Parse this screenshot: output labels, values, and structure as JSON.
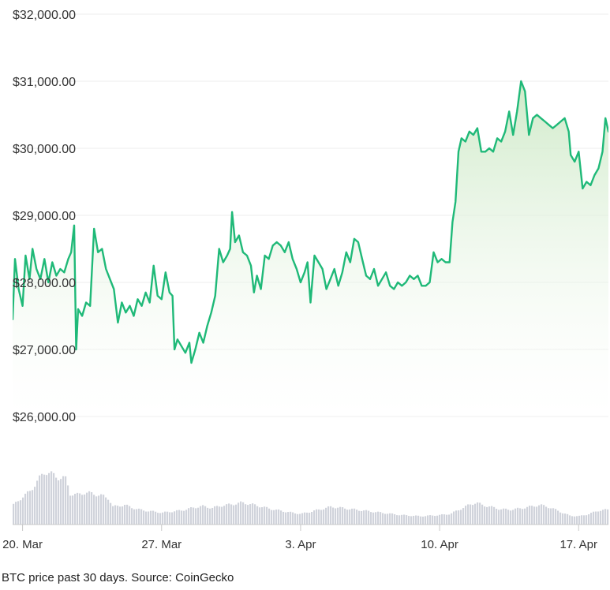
{
  "caption": "BTC price past 30 days. Source: CoinGecko",
  "colors": {
    "line": "#1fb978",
    "fill_top": "#cde9c6",
    "fill_bottom": "#ffffff",
    "grid": "#ececec",
    "volume": "#d0d3db"
  },
  "chart_data": {
    "type": "line",
    "y_tick_labels": [
      "$26,000.00",
      "$27,000.00",
      "$28,000.00",
      "$29,000.00",
      "$30,000.00",
      "$31,000.00",
      "$32,000.00"
    ],
    "y_tick_values": [
      26000,
      27000,
      28000,
      29000,
      30000,
      31000,
      32000
    ],
    "ylim": [
      26000,
      32000
    ],
    "x_tick_labels": [
      "20. Mar",
      "27. Mar",
      "3. Apr",
      "10. Apr",
      "17. Apr"
    ],
    "x_tick_values": [
      0.5,
      7.5,
      14.5,
      21.5,
      28.5
    ],
    "xlim": [
      0,
      30
    ],
    "grid": true,
    "series": [
      {
        "values": [
          [
            0.0,
            27450
          ],
          [
            0.12,
            28350
          ],
          [
            0.3,
            27900
          ],
          [
            0.5,
            27650
          ],
          [
            0.65,
            28400
          ],
          [
            0.85,
            28050
          ],
          [
            1.0,
            28500
          ],
          [
            1.2,
            28200
          ],
          [
            1.4,
            28050
          ],
          [
            1.6,
            28350
          ],
          [
            1.8,
            28000
          ],
          [
            2.0,
            28300
          ],
          [
            2.2,
            28100
          ],
          [
            2.4,
            28200
          ],
          [
            2.6,
            28150
          ],
          [
            2.8,
            28350
          ],
          [
            2.95,
            28450
          ],
          [
            3.1,
            28850
          ],
          [
            3.2,
            27000
          ],
          [
            3.3,
            27600
          ],
          [
            3.5,
            27500
          ],
          [
            3.7,
            27700
          ],
          [
            3.9,
            27650
          ],
          [
            4.1,
            28800
          ],
          [
            4.3,
            28450
          ],
          [
            4.5,
            28500
          ],
          [
            4.7,
            28200
          ],
          [
            4.9,
            28050
          ],
          [
            5.1,
            27900
          ],
          [
            5.3,
            27400
          ],
          [
            5.5,
            27700
          ],
          [
            5.7,
            27550
          ],
          [
            5.9,
            27650
          ],
          [
            6.1,
            27500
          ],
          [
            6.3,
            27750
          ],
          [
            6.5,
            27650
          ],
          [
            6.7,
            27850
          ],
          [
            6.9,
            27700
          ],
          [
            7.1,
            28250
          ],
          [
            7.3,
            27800
          ],
          [
            7.5,
            27750
          ],
          [
            7.7,
            28150
          ],
          [
            7.9,
            27850
          ],
          [
            8.05,
            27800
          ],
          [
            8.15,
            27000
          ],
          [
            8.3,
            27150
          ],
          [
            8.5,
            27050
          ],
          [
            8.7,
            26950
          ],
          [
            8.9,
            27100
          ],
          [
            9.0,
            26800
          ],
          [
            9.2,
            27000
          ],
          [
            9.4,
            27250
          ],
          [
            9.6,
            27100
          ],
          [
            9.8,
            27350
          ],
          [
            10.0,
            27550
          ],
          [
            10.2,
            27800
          ],
          [
            10.4,
            28500
          ],
          [
            10.6,
            28300
          ],
          [
            10.8,
            28400
          ],
          [
            10.95,
            28500
          ],
          [
            11.05,
            29050
          ],
          [
            11.2,
            28600
          ],
          [
            11.4,
            28700
          ],
          [
            11.6,
            28450
          ],
          [
            11.8,
            28400
          ],
          [
            12.0,
            28250
          ],
          [
            12.15,
            27850
          ],
          [
            12.3,
            28100
          ],
          [
            12.5,
            27900
          ],
          [
            12.7,
            28400
          ],
          [
            12.9,
            28350
          ],
          [
            13.1,
            28550
          ],
          [
            13.3,
            28600
          ],
          [
            13.5,
            28550
          ],
          [
            13.7,
            28450
          ],
          [
            13.9,
            28600
          ],
          [
            14.1,
            28350
          ],
          [
            14.3,
            28200
          ],
          [
            14.5,
            28000
          ],
          [
            14.7,
            28150
          ],
          [
            14.85,
            28300
          ],
          [
            15.0,
            27700
          ],
          [
            15.2,
            28400
          ],
          [
            15.4,
            28300
          ],
          [
            15.6,
            28200
          ],
          [
            15.8,
            27900
          ],
          [
            16.0,
            28050
          ],
          [
            16.2,
            28200
          ],
          [
            16.4,
            27950
          ],
          [
            16.6,
            28150
          ],
          [
            16.8,
            28450
          ],
          [
            17.0,
            28300
          ],
          [
            17.2,
            28650
          ],
          [
            17.4,
            28600
          ],
          [
            17.6,
            28350
          ],
          [
            17.8,
            28100
          ],
          [
            18.0,
            28050
          ],
          [
            18.2,
            28200
          ],
          [
            18.4,
            27950
          ],
          [
            18.6,
            28050
          ],
          [
            18.8,
            28150
          ],
          [
            19.0,
            27950
          ],
          [
            19.2,
            27900
          ],
          [
            19.4,
            28000
          ],
          [
            19.6,
            27950
          ],
          [
            19.8,
            28000
          ],
          [
            20.0,
            28100
          ],
          [
            20.2,
            28050
          ],
          [
            20.4,
            28100
          ],
          [
            20.6,
            27950
          ],
          [
            20.8,
            27950
          ],
          [
            21.0,
            28000
          ],
          [
            21.2,
            28450
          ],
          [
            21.4,
            28300
          ],
          [
            21.6,
            28350
          ],
          [
            21.8,
            28300
          ],
          [
            22.0,
            28300
          ],
          [
            22.15,
            28900
          ],
          [
            22.3,
            29200
          ],
          [
            22.45,
            29950
          ],
          [
            22.6,
            30150
          ],
          [
            22.8,
            30100
          ],
          [
            23.0,
            30250
          ],
          [
            23.2,
            30200
          ],
          [
            23.4,
            30300
          ],
          [
            23.6,
            29950
          ],
          [
            23.8,
            29950
          ],
          [
            24.0,
            30000
          ],
          [
            24.2,
            29950
          ],
          [
            24.4,
            30150
          ],
          [
            24.6,
            30100
          ],
          [
            24.8,
            30250
          ],
          [
            25.0,
            30550
          ],
          [
            25.2,
            30200
          ],
          [
            25.4,
            30550
          ],
          [
            25.6,
            31000
          ],
          [
            25.8,
            30850
          ],
          [
            26.0,
            30200
          ],
          [
            26.2,
            30450
          ],
          [
            26.4,
            30500
          ],
          [
            26.6,
            30450
          ],
          [
            26.8,
            30400
          ],
          [
            27.0,
            30350
          ],
          [
            27.2,
            30300
          ],
          [
            27.4,
            30350
          ],
          [
            27.6,
            30400
          ],
          [
            27.8,
            30450
          ],
          [
            28.0,
            30250
          ],
          [
            28.1,
            29900
          ],
          [
            28.3,
            29800
          ],
          [
            28.5,
            29950
          ],
          [
            28.7,
            29400
          ],
          [
            28.9,
            29500
          ],
          [
            29.1,
            29450
          ],
          [
            29.3,
            29600
          ],
          [
            29.5,
            29700
          ],
          [
            29.7,
            29950
          ],
          [
            29.85,
            30450
          ],
          [
            30.0,
            30250
          ]
        ]
      }
    ],
    "volume": {
      "values": [
        [
          0.0,
          0.33
        ],
        [
          0.4,
          0.45
        ],
        [
          0.8,
          0.55
        ],
        [
          1.1,
          0.68
        ],
        [
          1.4,
          0.82
        ],
        [
          1.6,
          0.9
        ],
        [
          1.9,
          0.85
        ],
        [
          2.2,
          0.8
        ],
        [
          2.5,
          0.78
        ],
        [
          2.7,
          0.76
        ],
        [
          2.8,
          0.52
        ],
        [
          3.2,
          0.5
        ],
        [
          3.6,
          0.54
        ],
        [
          4.0,
          0.52
        ],
        [
          4.5,
          0.48
        ],
        [
          4.8,
          0.44
        ],
        [
          5.0,
          0.3
        ],
        [
          5.6,
          0.33
        ],
        [
          6.0,
          0.28
        ],
        [
          6.5,
          0.24
        ],
        [
          7.0,
          0.22
        ],
        [
          7.5,
          0.2
        ],
        [
          8.0,
          0.22
        ],
        [
          8.5,
          0.24
        ],
        [
          9.0,
          0.28
        ],
        [
          9.5,
          0.31
        ],
        [
          10.0,
          0.28
        ],
        [
          10.5,
          0.32
        ],
        [
          11.0,
          0.34
        ],
        [
          11.5,
          0.37
        ],
        [
          12.0,
          0.34
        ],
        [
          12.5,
          0.3
        ],
        [
          13.0,
          0.26
        ],
        [
          13.5,
          0.23
        ],
        [
          14.0,
          0.2
        ],
        [
          14.5,
          0.18
        ],
        [
          15.0,
          0.22
        ],
        [
          15.5,
          0.26
        ],
        [
          16.0,
          0.3
        ],
        [
          16.5,
          0.28
        ],
        [
          17.0,
          0.26
        ],
        [
          17.5,
          0.24
        ],
        [
          18.0,
          0.22
        ],
        [
          18.5,
          0.2
        ],
        [
          19.0,
          0.18
        ],
        [
          19.5,
          0.16
        ],
        [
          20.0,
          0.15
        ],
        [
          20.5,
          0.14
        ],
        [
          21.0,
          0.15
        ],
        [
          21.5,
          0.16
        ],
        [
          22.0,
          0.18
        ],
        [
          22.5,
          0.26
        ],
        [
          23.0,
          0.34
        ],
        [
          23.3,
          0.37
        ],
        [
          23.6,
          0.33
        ],
        [
          24.0,
          0.3
        ],
        [
          24.5,
          0.26
        ],
        [
          25.0,
          0.25
        ],
        [
          25.5,
          0.27
        ],
        [
          26.0,
          0.3
        ],
        [
          26.5,
          0.33
        ],
        [
          27.0,
          0.29
        ],
        [
          27.5,
          0.22
        ],
        [
          28.0,
          0.15
        ],
        [
          28.5,
          0.14
        ],
        [
          29.0,
          0.18
        ],
        [
          29.5,
          0.24
        ],
        [
          30.0,
          0.25
        ]
      ]
    }
  }
}
